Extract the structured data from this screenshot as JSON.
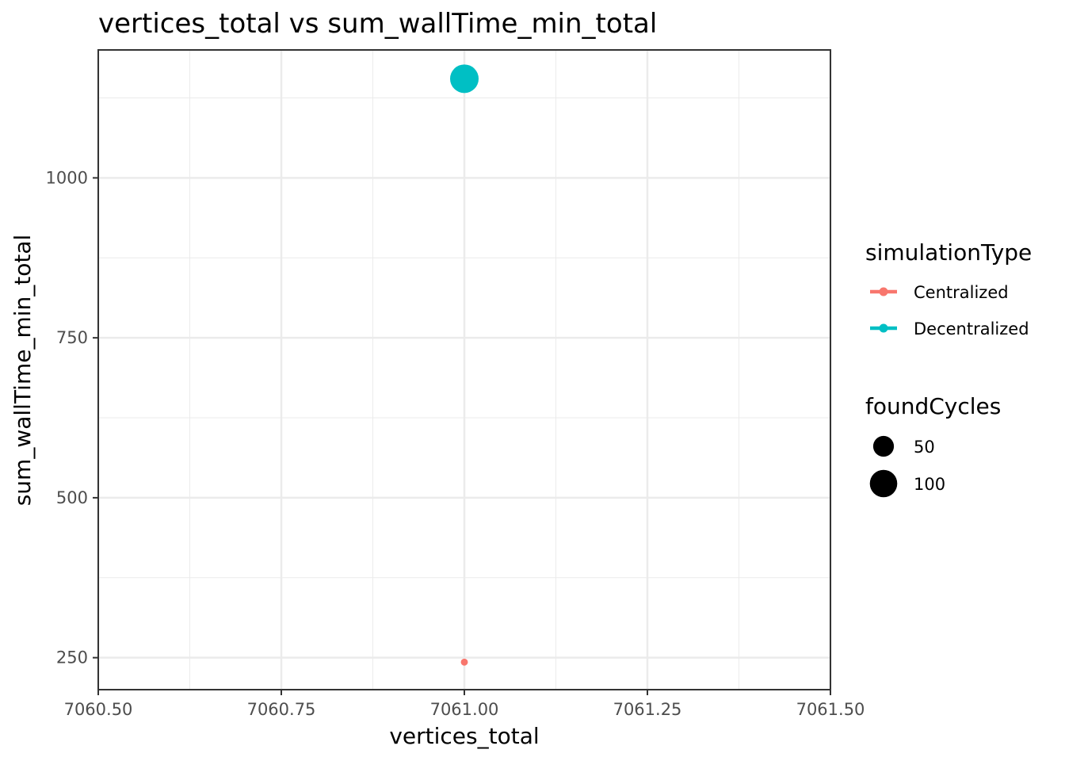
{
  "chart_data": {
    "type": "scatter",
    "title": "vertices_total  vs  sum_wallTime_min_total",
    "xlabel": "vertices_total",
    "ylabel": "sum_wallTime_min_total",
    "xlim": [
      7060.5,
      7061.5
    ],
    "ylim": [
      200,
      1200
    ],
    "x_ticks": [
      7060.5,
      7060.75,
      7061.0,
      7061.25,
      7061.5
    ],
    "x_tick_labels": [
      "7060.50",
      "7060.75",
      "7061.00",
      "7061.25",
      "7061.50"
    ],
    "y_ticks": [
      250,
      500,
      750,
      1000
    ],
    "y_tick_labels": [
      "250",
      "500",
      "750",
      "1000"
    ],
    "grid": true,
    "series": [
      {
        "name": "Centralized",
        "color": "#F8766D",
        "points": [
          {
            "x": 7061.0,
            "y": 243,
            "foundCycles": 1
          }
        ]
      },
      {
        "name": "Decentralized",
        "color": "#00BFC4",
        "points": [
          {
            "x": 7061.0,
            "y": 1155,
            "foundCycles": 110
          }
        ]
      }
    ],
    "legend": {
      "placement": "right",
      "color_title": "simulationType",
      "color_items": [
        "Centralized",
        "Decentralized"
      ],
      "size_title": "foundCycles",
      "size_items": [
        {
          "label": "50",
          "value": 50
        },
        {
          "label": "100",
          "value": 100
        }
      ]
    }
  }
}
